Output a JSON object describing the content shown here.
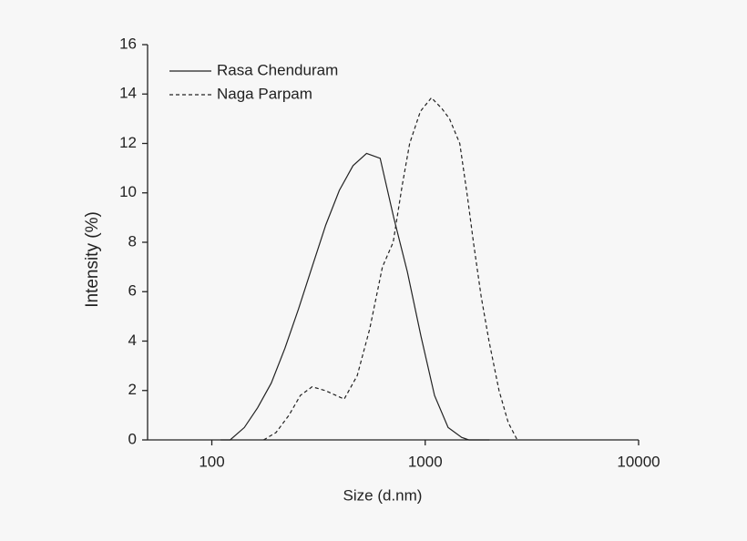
{
  "chart_data": {
    "type": "line",
    "x_label": "Size (d.nm)",
    "y_label": "Intensity (%)",
    "xlog": true,
    "xlim": [
      50,
      10000
    ],
    "xticks": [
      100,
      1000,
      10000
    ],
    "ylim": [
      0,
      16
    ],
    "yticks": [
      0,
      2,
      4,
      6,
      8,
      10,
      12,
      14,
      16
    ],
    "legend": "upper-left",
    "series": [
      {
        "name": "Rasa Chenduram",
        "color": "#222222",
        "dash": "solid",
        "x": [
          110,
          122,
          142,
          164,
          190,
          220,
          255,
          295,
          342,
          396,
          459,
          531,
          615,
          712,
          825,
          955,
          1106,
          1281,
          1484,
          1600,
          2000
        ],
        "values": [
          0,
          0,
          0.5,
          1.3,
          2.3,
          3.7,
          5.3,
          7.0,
          8.7,
          10.1,
          11.1,
          11.6,
          11.4,
          9.0,
          6.8,
          4.2,
          1.8,
          0.5,
          0.1,
          0,
          0
        ]
      },
      {
        "name": "Naga Parpam",
        "color": "#222222",
        "dash": "dashed",
        "x": [
          175,
          200,
          230,
          260,
          295,
          340,
          417,
          480,
          550,
          630,
          708,
          780,
          846,
          950,
          1070,
          1200,
          1300,
          1452,
          1580,
          1683,
          1830,
          1991,
          2218,
          2450,
          2700
        ],
        "values": [
          0,
          0.3,
          1.0,
          1.8,
          2.15,
          2.0,
          1.65,
          2.6,
          4.5,
          7.0,
          8.0,
          10.3,
          12.0,
          13.3,
          13.85,
          13.4,
          13.0,
          12.0,
          9.8,
          8.0,
          5.8,
          4.0,
          2.0,
          0.7,
          0
        ]
      }
    ]
  }
}
